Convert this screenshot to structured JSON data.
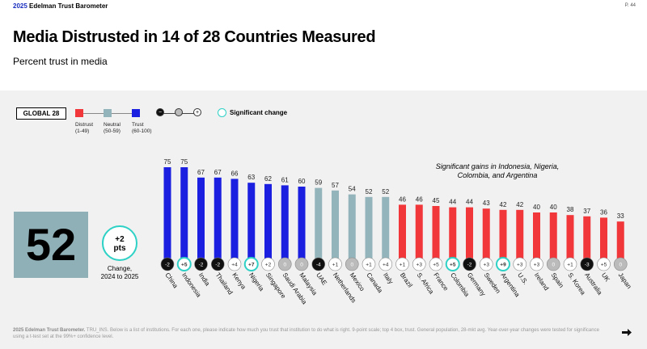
{
  "header": {
    "brand_year": "2025",
    "brand_name": "Edelman Trust Barometer",
    "page": "P. 44",
    "title": "Media Distrusted in 14 of 28 Countries Measured",
    "subtitle": "Percent trust in media"
  },
  "legend": {
    "global_label": "GLOBAL 28",
    "distrust": "Distrust",
    "distrust_range": "(1-49)",
    "neutral": "Neutral",
    "neutral_range": "(50-59)",
    "trust": "Trust",
    "trust_range": "(60-100)",
    "minus": "−",
    "plus": "+",
    "significant": "Significant change"
  },
  "global": {
    "value": "52",
    "change": "+2",
    "change_unit": "pts",
    "change_label_1": "Change,",
    "change_label_2": "2024 to 2025"
  },
  "annotation": "Significant gains in Indonesia, Nigeria, Colombia, and Argentina",
  "colors": {
    "trust": "#1b1fe0",
    "neutral": "#93b4ba",
    "distrust": "#f2373a",
    "significant": "#2ed1c6"
  },
  "chart_data": {
    "type": "bar",
    "ylim": [
      0,
      100
    ],
    "categories": [
      "China",
      "Indonesia",
      "India",
      "Thailand",
      "Kenya",
      "Nigeria",
      "Singapore",
      "Saudi Arabia",
      "Malaysia",
      "UAE",
      "Netherlands",
      "Mexico",
      "Canada",
      "Italy",
      "Brazil",
      "S. Africa",
      "France",
      "Colombia",
      "Germany",
      "Sweden",
      "Argentina",
      "U.S.",
      "Ireland",
      "Spain",
      "S. Korea",
      "Australia",
      "UK",
      "Japan"
    ],
    "values": [
      75,
      75,
      67,
      67,
      66,
      63,
      62,
      61,
      60,
      59,
      57,
      54,
      52,
      52,
      46,
      46,
      45,
      44,
      44,
      43,
      42,
      42,
      40,
      40,
      38,
      37,
      36,
      33
    ],
    "changes": [
      "-2",
      "+5",
      "-2",
      "-2",
      "+4",
      "+7",
      "+2",
      "0",
      "0",
      "-4",
      "+1",
      "0",
      "+1",
      "+4",
      "+1",
      "+3",
      "+5",
      "+5",
      "-2",
      "+3",
      "+9",
      "+3",
      "+3",
      "0",
      "+1",
      "-3",
      "+5",
      "0"
    ],
    "significant": [
      "Indonesia",
      "Nigeria",
      "Colombia",
      "Argentina"
    ]
  },
  "footnote_bold": "2025 Edelman Trust Barometer.",
  "footnote": " TRU_INS. Below is a list of institutions. For each one, please indicate how much you trust that institution to do what is right. 9-point scale; top 4 box, trust. General population, 28-mkt avg. Year-over-year changes were tested for significance using a t-test set at the 99%+ confidence level."
}
